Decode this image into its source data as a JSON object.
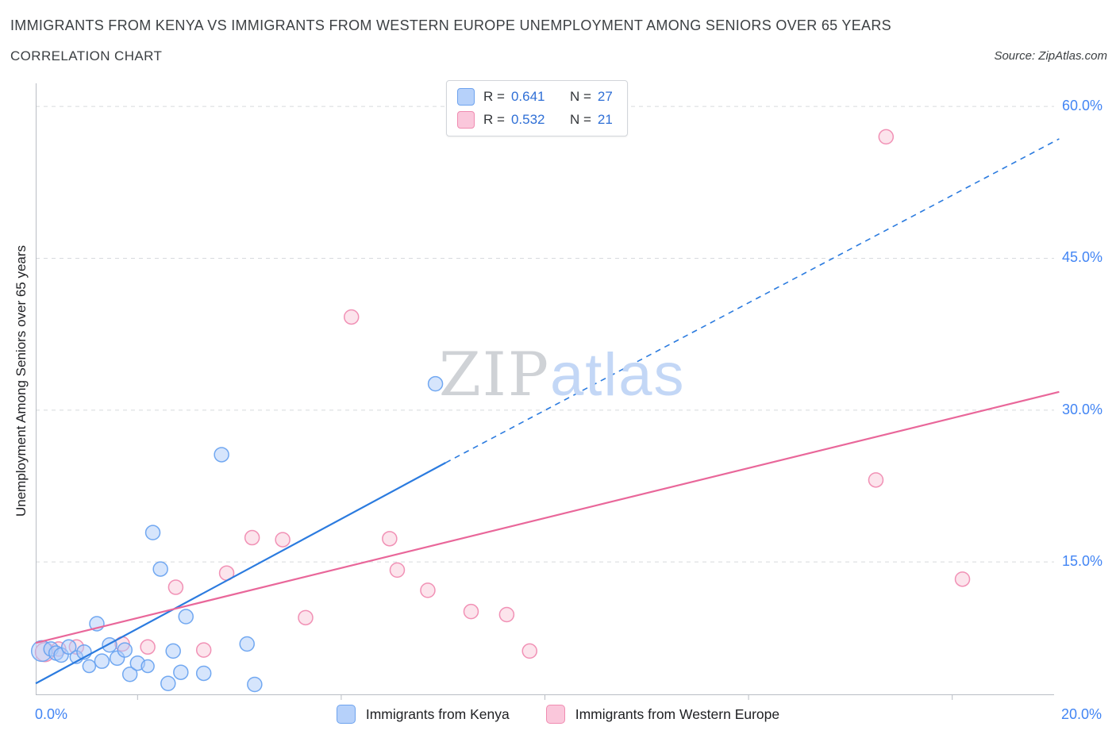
{
  "header": {
    "title": "IMMIGRANTS FROM KENYA VS IMMIGRANTS FROM WESTERN EUROPE UNEMPLOYMENT AMONG SENIORS OVER 65 YEARS",
    "subtitle": "CORRELATION CHART",
    "source": "Source: ZipAtlas.com"
  },
  "axes": {
    "y_label": "Unemployment Among Seniors over 65 years",
    "x_min_label": "0.0%",
    "x_max_label": "20.0%",
    "y_ticks": [
      {
        "value": 60,
        "label": "60.0%"
      },
      {
        "value": 45,
        "label": "45.0%"
      },
      {
        "value": 30,
        "label": "30.0%"
      },
      {
        "value": 15,
        "label": "15.0%"
      }
    ]
  },
  "watermark": {
    "zip": "ZIP",
    "atlas": "atlas"
  },
  "legend_box": {
    "rows": [
      {
        "swatch": "kenya",
        "r_label": "R =",
        "r_value": "0.641",
        "n_label": "N =",
        "n_value": "27"
      },
      {
        "swatch": "western-europe",
        "r_label": "R =",
        "r_value": "0.532",
        "n_label": "N =",
        "n_value": "21"
      }
    ]
  },
  "bottom_legend": [
    {
      "label": "Immigrants from Kenya"
    },
    {
      "label": "Immigrants from Western Europe"
    }
  ],
  "colors": {
    "kenya_fill": "#aecbfa",
    "kenya_stroke": "#64a0ef",
    "kenya_line": "#2b7bdf",
    "we_fill": "#f9c9da",
    "we_stroke": "#ef86ae",
    "we_line": "#e9679a",
    "axis_line": "#b9bdc4",
    "gridline": "#d7dade",
    "accent_text": "#4285f4"
  },
  "chart_data": {
    "type": "scatter",
    "title": "Immigrants from Kenya vs Immigrants from Western Europe — Unemployment Among Seniors over 65 years",
    "xlabel": "",
    "ylabel": "Unemployment Among Seniors over 65 years",
    "x_range_pct": [
      0,
      20
    ],
    "y_range_pct": [
      0,
      62
    ],
    "y_gridlines_pct": [
      15,
      30,
      45,
      60
    ],
    "x_ticks_pct": [
      2,
      6,
      10,
      14,
      18
    ],
    "grid": "horizontal-dashed",
    "legend_position": "top-center",
    "series": [
      {
        "name": "Immigrants from Kenya",
        "R": 0.641,
        "N": 27,
        "points": [
          [
            0.12,
            6.2,
            13
          ],
          [
            0.3,
            6.4,
            9
          ],
          [
            0.4,
            6.0,
            9
          ],
          [
            0.5,
            5.8,
            9
          ],
          [
            0.65,
            6.6,
            9
          ],
          [
            0.8,
            5.6,
            8
          ],
          [
            0.95,
            6.1,
            9
          ],
          [
            1.05,
            4.7,
            8
          ],
          [
            1.2,
            8.9,
            9
          ],
          [
            1.3,
            5.2,
            9
          ],
          [
            1.45,
            6.8,
            9
          ],
          [
            1.6,
            5.5,
            9
          ],
          [
            1.75,
            6.3,
            9
          ],
          [
            1.85,
            3.9,
            9
          ],
          [
            2.0,
            5.0,
            9
          ],
          [
            2.2,
            4.7,
            8
          ],
          [
            2.3,
            17.9,
            9
          ],
          [
            2.45,
            14.3,
            9
          ],
          [
            2.6,
            3.0,
            9
          ],
          [
            2.7,
            6.2,
            9
          ],
          [
            2.85,
            4.1,
            9
          ],
          [
            2.95,
            9.6,
            9
          ],
          [
            3.3,
            4.0,
            9
          ],
          [
            3.65,
            25.6,
            9
          ],
          [
            4.15,
            6.9,
            9
          ],
          [
            4.3,
            2.9,
            9
          ],
          [
            7.85,
            32.6,
            9
          ]
        ]
      },
      {
        "name": "Immigrants from Western Europe",
        "R": 0.532,
        "N": 21,
        "points": [
          [
            0.18,
            6.1,
            12
          ],
          [
            0.45,
            6.4,
            9
          ],
          [
            0.8,
            6.6,
            9
          ],
          [
            1.7,
            6.9,
            9
          ],
          [
            2.2,
            6.6,
            9
          ],
          [
            2.75,
            12.5,
            9
          ],
          [
            3.3,
            6.3,
            9
          ],
          [
            3.75,
            13.9,
            9
          ],
          [
            4.25,
            17.4,
            9
          ],
          [
            4.85,
            17.2,
            9
          ],
          [
            5.3,
            9.5,
            9
          ],
          [
            6.2,
            39.2,
            9
          ],
          [
            6.95,
            17.3,
            9
          ],
          [
            7.1,
            14.2,
            9
          ],
          [
            7.7,
            12.2,
            9
          ],
          [
            8.55,
            10.1,
            9
          ],
          [
            9.25,
            9.8,
            9
          ],
          [
            9.7,
            6.2,
            9
          ],
          [
            16.5,
            23.1,
            9
          ],
          [
            16.7,
            57.0,
            9
          ],
          [
            18.2,
            13.3,
            9
          ]
        ]
      }
    ],
    "trendlines": [
      {
        "series": "Immigrants from Kenya",
        "solid": [
          [
            0,
            3.0
          ],
          [
            8.05,
            24.8
          ]
        ],
        "dashed": [
          [
            8.05,
            24.8
          ],
          [
            20.1,
            56.8
          ]
        ]
      },
      {
        "series": "Immigrants from Western Europe",
        "solid": [
          [
            0,
            7.0
          ],
          [
            20.1,
            31.8
          ]
        ]
      }
    ]
  }
}
